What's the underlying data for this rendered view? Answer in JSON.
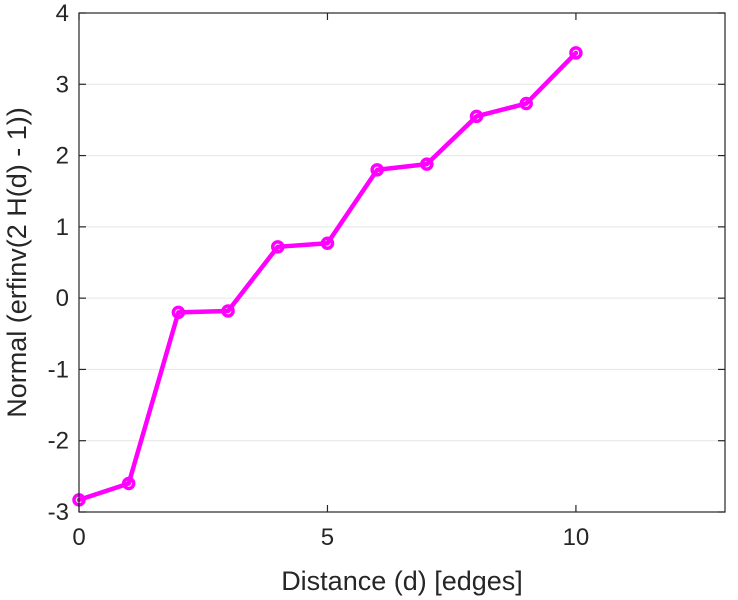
{
  "chart_data": {
    "type": "line",
    "title": "",
    "xlabel": "Distance (d) [edges]",
    "ylabel": "Normal (erfinv(2 H(d) - 1))",
    "xlim": [
      0,
      13
    ],
    "ylim": [
      -3,
      4
    ],
    "xticks": [
      0,
      5,
      10
    ],
    "yticks": [
      -3,
      -2,
      -1,
      0,
      1,
      2,
      3,
      4
    ],
    "x_tick_labels": [
      "0",
      "5",
      "10"
    ],
    "y_tick_labels": [
      "-3",
      "-2",
      "-1",
      "0",
      "1",
      "2",
      "3",
      "4"
    ],
    "grid": "horizontal",
    "legend": "none",
    "series": [
      {
        "color": "#ff00ff",
        "marker": "circle",
        "x": [
          0,
          1,
          2,
          3,
          4,
          5,
          6,
          7,
          8,
          9,
          10
        ],
        "y": [
          -2.83,
          -2.6,
          -0.2,
          -0.18,
          0.72,
          0.77,
          1.8,
          1.88,
          2.55,
          2.73,
          3.44
        ]
      }
    ]
  },
  "colors": {
    "axis": "#262626",
    "grid": "#e6e6e6",
    "series": "#ff00ff"
  }
}
